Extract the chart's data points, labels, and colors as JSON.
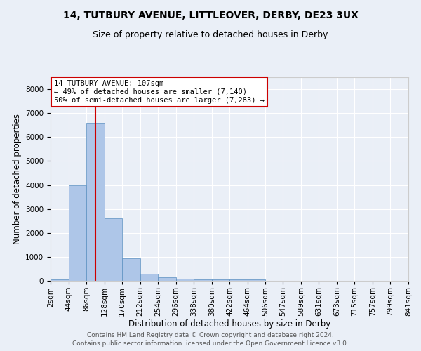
{
  "title1": "14, TUTBURY AVENUE, LITTLEOVER, DERBY, DE23 3UX",
  "title2": "Size of property relative to detached houses in Derby",
  "xlabel": "Distribution of detached houses by size in Derby",
  "ylabel": "Number of detached properties",
  "bin_edges": [
    2,
    44,
    86,
    128,
    170,
    212,
    254,
    296,
    338,
    380,
    422,
    464,
    506,
    547,
    589,
    631,
    673,
    715,
    757,
    799,
    841
  ],
  "bar_heights": [
    50,
    4000,
    6600,
    2600,
    950,
    300,
    150,
    100,
    50,
    50,
    50,
    50,
    0,
    0,
    0,
    0,
    0,
    0,
    0,
    0
  ],
  "bar_color": "#aec6e8",
  "bar_edge_color": "#5a8fc0",
  "background_color": "#eaeff7",
  "red_line_x": 107,
  "annotation_title": "14 TUTBURY AVENUE: 107sqm",
  "annotation_line1": "← 49% of detached houses are smaller (7,140)",
  "annotation_line2": "50% of semi-detached houses are larger (7,283) →",
  "annotation_box_color": "#ffffff",
  "annotation_box_edge": "#cc0000",
  "red_line_color": "#cc0000",
  "ylim": [
    0,
    8500
  ],
  "yticks": [
    0,
    1000,
    2000,
    3000,
    4000,
    5000,
    6000,
    7000,
    8000
  ],
  "footer1": "Contains HM Land Registry data © Crown copyright and database right 2024.",
  "footer2": "Contains public sector information licensed under the Open Government Licence v3.0.",
  "title1_fontsize": 10,
  "title2_fontsize": 9,
  "xlabel_fontsize": 8.5,
  "ylabel_fontsize": 8.5,
  "tick_fontsize": 7.5,
  "footer_fontsize": 6.5,
  "annot_fontsize": 7.5
}
